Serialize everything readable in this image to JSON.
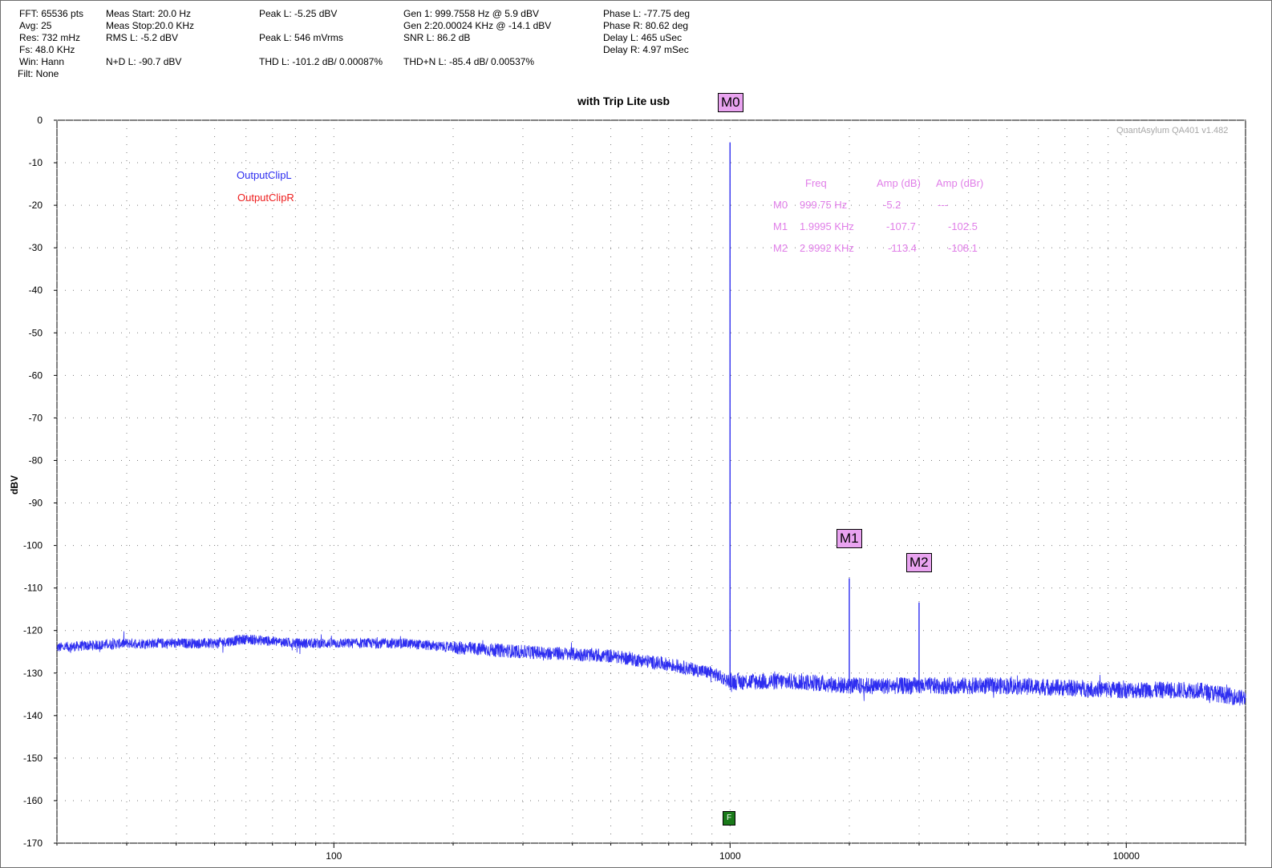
{
  "stats": {
    "col1": [
      "FFT: 65536 pts",
      "Avg: 25",
      "Res: 732 mHz",
      "Fs: 48.0 KHz",
      "Win: Hann",
      "Filt: None"
    ],
    "col2": [
      "Meas Start: 20.0 Hz",
      "Meas Stop:20.0 KHz",
      "RMS L: -5.2 dBV",
      "N+D L: -90.7 dBV"
    ],
    "col3": [
      "Peak L: -5.25 dBV",
      "Peak L: 546 mVrms",
      "THD L: -101.2 dB/ 0.00087%"
    ],
    "col4": [
      "Gen 1: 999.7558 Hz @ 5.9  dBV",
      "Gen 2:20.00024 KHz @ -14.1  dBV",
      "SNR L: 86.2 dB",
      "THD+N L: -85.4 dB/ 0.00537%"
    ],
    "col5": [
      "Phase L: -77.75 deg",
      "Phase R: 80.62 deg",
      "Delay L: 465 uSec",
      "Delay R: 4.97 mSec"
    ]
  },
  "watermark": "QuantAsylum QA401 v1.482",
  "legend": [
    {
      "name": "OutputClipL",
      "color": "#2d2df0"
    },
    {
      "name": "OutputClipR",
      "color": "#ee1c1c"
    }
  ],
  "marker_table": {
    "headers": [
      "Freq",
      "Amp (dB)",
      "Amp (dBr)"
    ],
    "rows": [
      {
        "id": "M0",
        "freq": "999.75 Hz",
        "amp_db": "-5.2",
        "amp_dbr": "---"
      },
      {
        "id": "M1",
        "freq": "1.9995 KHz",
        "amp_db": "-107.7",
        "amp_dbr": "-102.5"
      },
      {
        "id": "M2",
        "freq": "2.9992 KHz",
        "amp_db": "-113.4",
        "amp_dbr": "-108.1"
      }
    ]
  },
  "f_badge": "F",
  "colors": {
    "trace_left": "#2d2df0",
    "trace_right": "#ee1c1c",
    "marker_fill": "#e9a3f0",
    "marker_text": "#e07ee8",
    "grid": "#7a7a7a"
  },
  "chart_data": {
    "type": "line",
    "title": "with Trip Lite usb",
    "xlabel": "",
    "ylabel": "dBV",
    "xscale": "log",
    "xlim": [
      20,
      20000
    ],
    "ylim": [
      -170,
      0
    ],
    "x_ticks": [
      100,
      1000,
      10000
    ],
    "x_tick_labels": [
      "100",
      "1000",
      "10000"
    ],
    "y_ticks": [
      0,
      -10,
      -20,
      -30,
      -40,
      -50,
      -60,
      -70,
      -80,
      -90,
      -100,
      -110,
      -120,
      -130,
      -140,
      -150,
      -160,
      -170
    ],
    "grid": true,
    "legend_position": "top-left",
    "series": [
      {
        "name": "OutputClipL",
        "color": "#2d2df0",
        "noise_floor": {
          "x": [
            20,
            30,
            50,
            60,
            80,
            100,
            150,
            200,
            300,
            500,
            700,
            900,
            1000,
            1500,
            2000,
            3000,
            5000,
            10000,
            15000,
            20000
          ],
          "y": [
            -124,
            -123,
            -123,
            -122,
            -123,
            -123,
            -123,
            -124,
            -125,
            -126,
            -128,
            -130,
            -132,
            -132,
            -133,
            -133,
            -133,
            -134,
            -134,
            -136
          ]
        },
        "peaks": [
          {
            "x": 999.75,
            "y": -5.2
          },
          {
            "x": 1999.5,
            "y": -107.7
          },
          {
            "x": 2999.2,
            "y": -113.4
          }
        ]
      },
      {
        "name": "OutputClipR",
        "color": "#ee1c1c",
        "noise_floor": {
          "x": [],
          "y": []
        },
        "peaks": []
      }
    ],
    "markers": [
      {
        "label": "M0",
        "x": 999.75,
        "y": -5.2
      },
      {
        "label": "M1",
        "x": 1999.5,
        "y": -107.7
      },
      {
        "label": "M2",
        "x": 2999.2,
        "y": -113.4
      }
    ]
  }
}
